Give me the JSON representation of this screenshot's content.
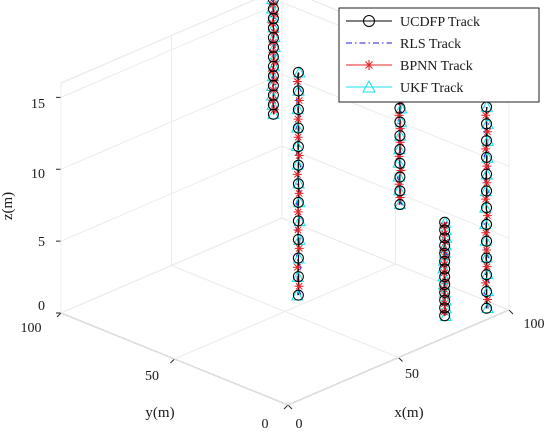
{
  "chart_data": {
    "type": "scatter",
    "projection": "3d",
    "xlabel": "x(m)",
    "ylabel": "y(m)",
    "zlabel": "z(m)",
    "xlim": [
      0,
      100
    ],
    "ylim": [
      0,
      100
    ],
    "zlim": [
      0,
      16
    ],
    "xticks": [
      "0",
      "50",
      "100"
    ],
    "yticks": [
      "0",
      "50",
      "100"
    ],
    "zticks": [
      "0",
      "5",
      "10",
      "15"
    ],
    "grid": true,
    "legend_position": "top-right",
    "series": [
      {
        "name": "UCDFP Track",
        "color": "#000000",
        "line": "solid",
        "marker": "circle"
      },
      {
        "name": "RLS Track",
        "color": "#1f1fd6",
        "line": "dash-dot",
        "marker": "none"
      },
      {
        "name": "BPNN Track",
        "color": "#e3262a",
        "line": "solid",
        "marker": "asterisk"
      },
      {
        "name": "UKF Track",
        "color": "#19e0e8",
        "line": "solid",
        "marker": "triangle"
      }
    ],
    "tracks": [
      {
        "x": [
          92,
          92
        ],
        "y": [
          96,
          96
        ],
        "z": [
          8,
          16
        ]
      },
      {
        "x": [
          96,
          96
        ],
        "y": [
          6,
          6
        ],
        "z": [
          0,
          14
        ]
      },
      {
        "x": [
          54,
          54
        ],
        "y": [
          48,
          48
        ],
        "z": [
          1,
          16.5
        ]
      },
      {
        "x": [
          102,
          102
        ],
        "y": [
          50,
          50
        ],
        "z": [
          4,
          15.5
        ]
      },
      {
        "x": [
          75,
          75
        ],
        "y": [
          4,
          4
        ],
        "z": [
          1,
          7.5
        ]
      }
    ]
  }
}
